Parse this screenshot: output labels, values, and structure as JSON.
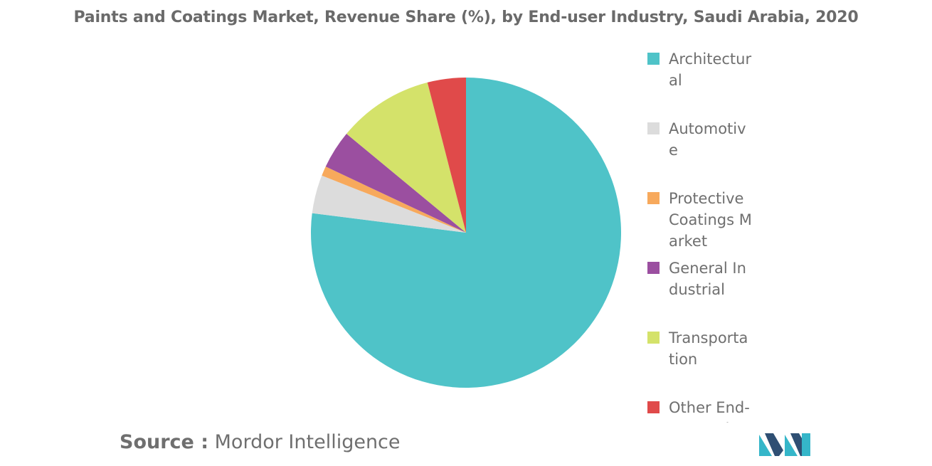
{
  "chart_data": {
    "type": "pie",
    "title": "Paints and Coatings Market, Revenue Share (%), by End-user Industry, Saudi Arabia, 2020",
    "categories": [
      "Architectural",
      "Automotive",
      "Protective Coatings Market",
      "General Industrial",
      "Transportation",
      "Other End-user Industries"
    ],
    "values": [
      77,
      4,
      1,
      4,
      10,
      4
    ],
    "colors": [
      "#4fc3c8",
      "#dcdcdc",
      "#f7a95c",
      "#9b4fa0",
      "#d4e26a",
      "#e04a4a"
    ],
    "legend_position": "right"
  },
  "legend": {
    "items": [
      {
        "label": "Architectural",
        "color": "#4fc3c8"
      },
      {
        "label": "Automotive",
        "color": "#dcdcdc"
      },
      {
        "label": "Protective Coatings Market",
        "color": "#f7a95c"
      },
      {
        "label": "General Industrial",
        "color": "#9b4fa0"
      },
      {
        "label": "Transportation",
        "color": "#d4e26a"
      },
      {
        "label": "Other End-user Industries",
        "color": "#e04a4a"
      }
    ]
  },
  "source": {
    "prefix": "Source :",
    "name": "Mordor Intelligence"
  },
  "logo": {
    "icon": "mordor-intelligence-logo",
    "colors": [
      "#2f4f73",
      "#35b6c9"
    ]
  }
}
